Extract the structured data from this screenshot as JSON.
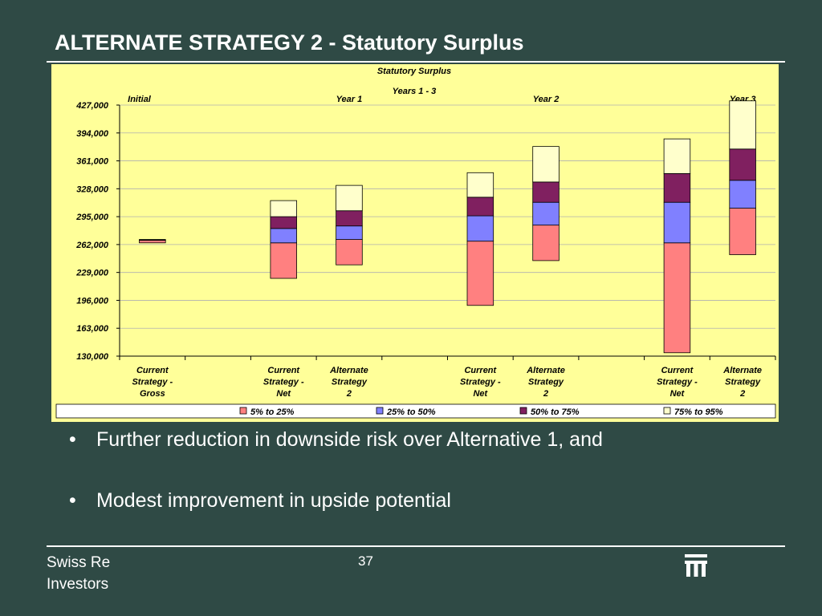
{
  "slide": {
    "title": "ALTERNATE STRATEGY 2 - Statutory Surplus",
    "bullets": [
      "Further reduction in downside risk over Alternative 1, and",
      "Modest improvement in upside potential"
    ],
    "footer_org_line1": "Swiss Re",
    "footer_org_line2": "Investors",
    "page_number": "37",
    "logo_icon": "swiss-re-logo-icon"
  },
  "colors": {
    "background": "#2f4a45",
    "plot_area": "#ffff99",
    "band_5_25": "#ff8080",
    "band_25_50": "#8080ff",
    "band_50_75": "#802060",
    "band_75_95": "#ffffcc"
  },
  "chart_data": {
    "type": "bar",
    "subtype": "floating-stacked-percentile",
    "title": "Statutory Surplus",
    "subtitle": "Years 1 - 3",
    "ylim": [
      130000,
      427000
    ],
    "yticks": [
      "427,000",
      "394,000",
      "361,000",
      "328,000",
      "295,000",
      "262,000",
      "229,000",
      "196,000",
      "163,000",
      "130,000"
    ],
    "ytick_values": [
      427000,
      394000,
      361000,
      328000,
      295000,
      262000,
      229000,
      196000,
      163000,
      130000
    ],
    "grid": true,
    "legend_position": "bottom",
    "period_labels": [
      "Initial",
      "Year 1",
      "Year 2",
      "Year 3"
    ],
    "categories": [
      [
        "Current",
        "Strategy -",
        "Gross"
      ],
      [
        "",
        "",
        ""
      ],
      [
        "Current",
        "Strategy -",
        "Net"
      ],
      [
        "Alternate",
        "Strategy",
        "2"
      ],
      [
        "",
        "",
        ""
      ],
      [
        "Current",
        "Strategy -",
        "Net"
      ],
      [
        "Alternate",
        "Strategy",
        "2"
      ],
      [
        "",
        "",
        ""
      ],
      [
        "Current",
        "Strategy -",
        "Net"
      ],
      [
        "Alternate",
        "Strategy",
        "2"
      ]
    ],
    "series": [
      {
        "name": "5% to 25%",
        "color": "#ff8080"
      },
      {
        "name": "25% to 50%",
        "color": "#8080ff"
      },
      {
        "name": "50% to 75%",
        "color": "#802060"
      },
      {
        "name": "75% to 95%",
        "color": "#ffffcc"
      }
    ],
    "percentiles": [
      {
        "category_index": 0,
        "p5": 264000,
        "p25": 267000,
        "p50": 267500,
        "p75": 268000,
        "p95": 268000
      },
      {
        "category_index": 2,
        "p5": 222000,
        "p25": 264000,
        "p50": 281000,
        "p75": 295000,
        "p95": 314000
      },
      {
        "category_index": 3,
        "p5": 238000,
        "p25": 268000,
        "p50": 284000,
        "p75": 302000,
        "p95": 332000
      },
      {
        "category_index": 5,
        "p5": 190000,
        "p25": 266000,
        "p50": 296000,
        "p75": 318000,
        "p95": 347000
      },
      {
        "category_index": 6,
        "p5": 243000,
        "p25": 285000,
        "p50": 312000,
        "p75": 336000,
        "p95": 378000
      },
      {
        "category_index": 8,
        "p5": 134000,
        "p25": 264000,
        "p50": 312000,
        "p75": 346000,
        "p95": 387000
      },
      {
        "category_index": 9,
        "p5": 250000,
        "p25": 305000,
        "p50": 338000,
        "p75": 375000,
        "p95": 432000
      }
    ]
  }
}
